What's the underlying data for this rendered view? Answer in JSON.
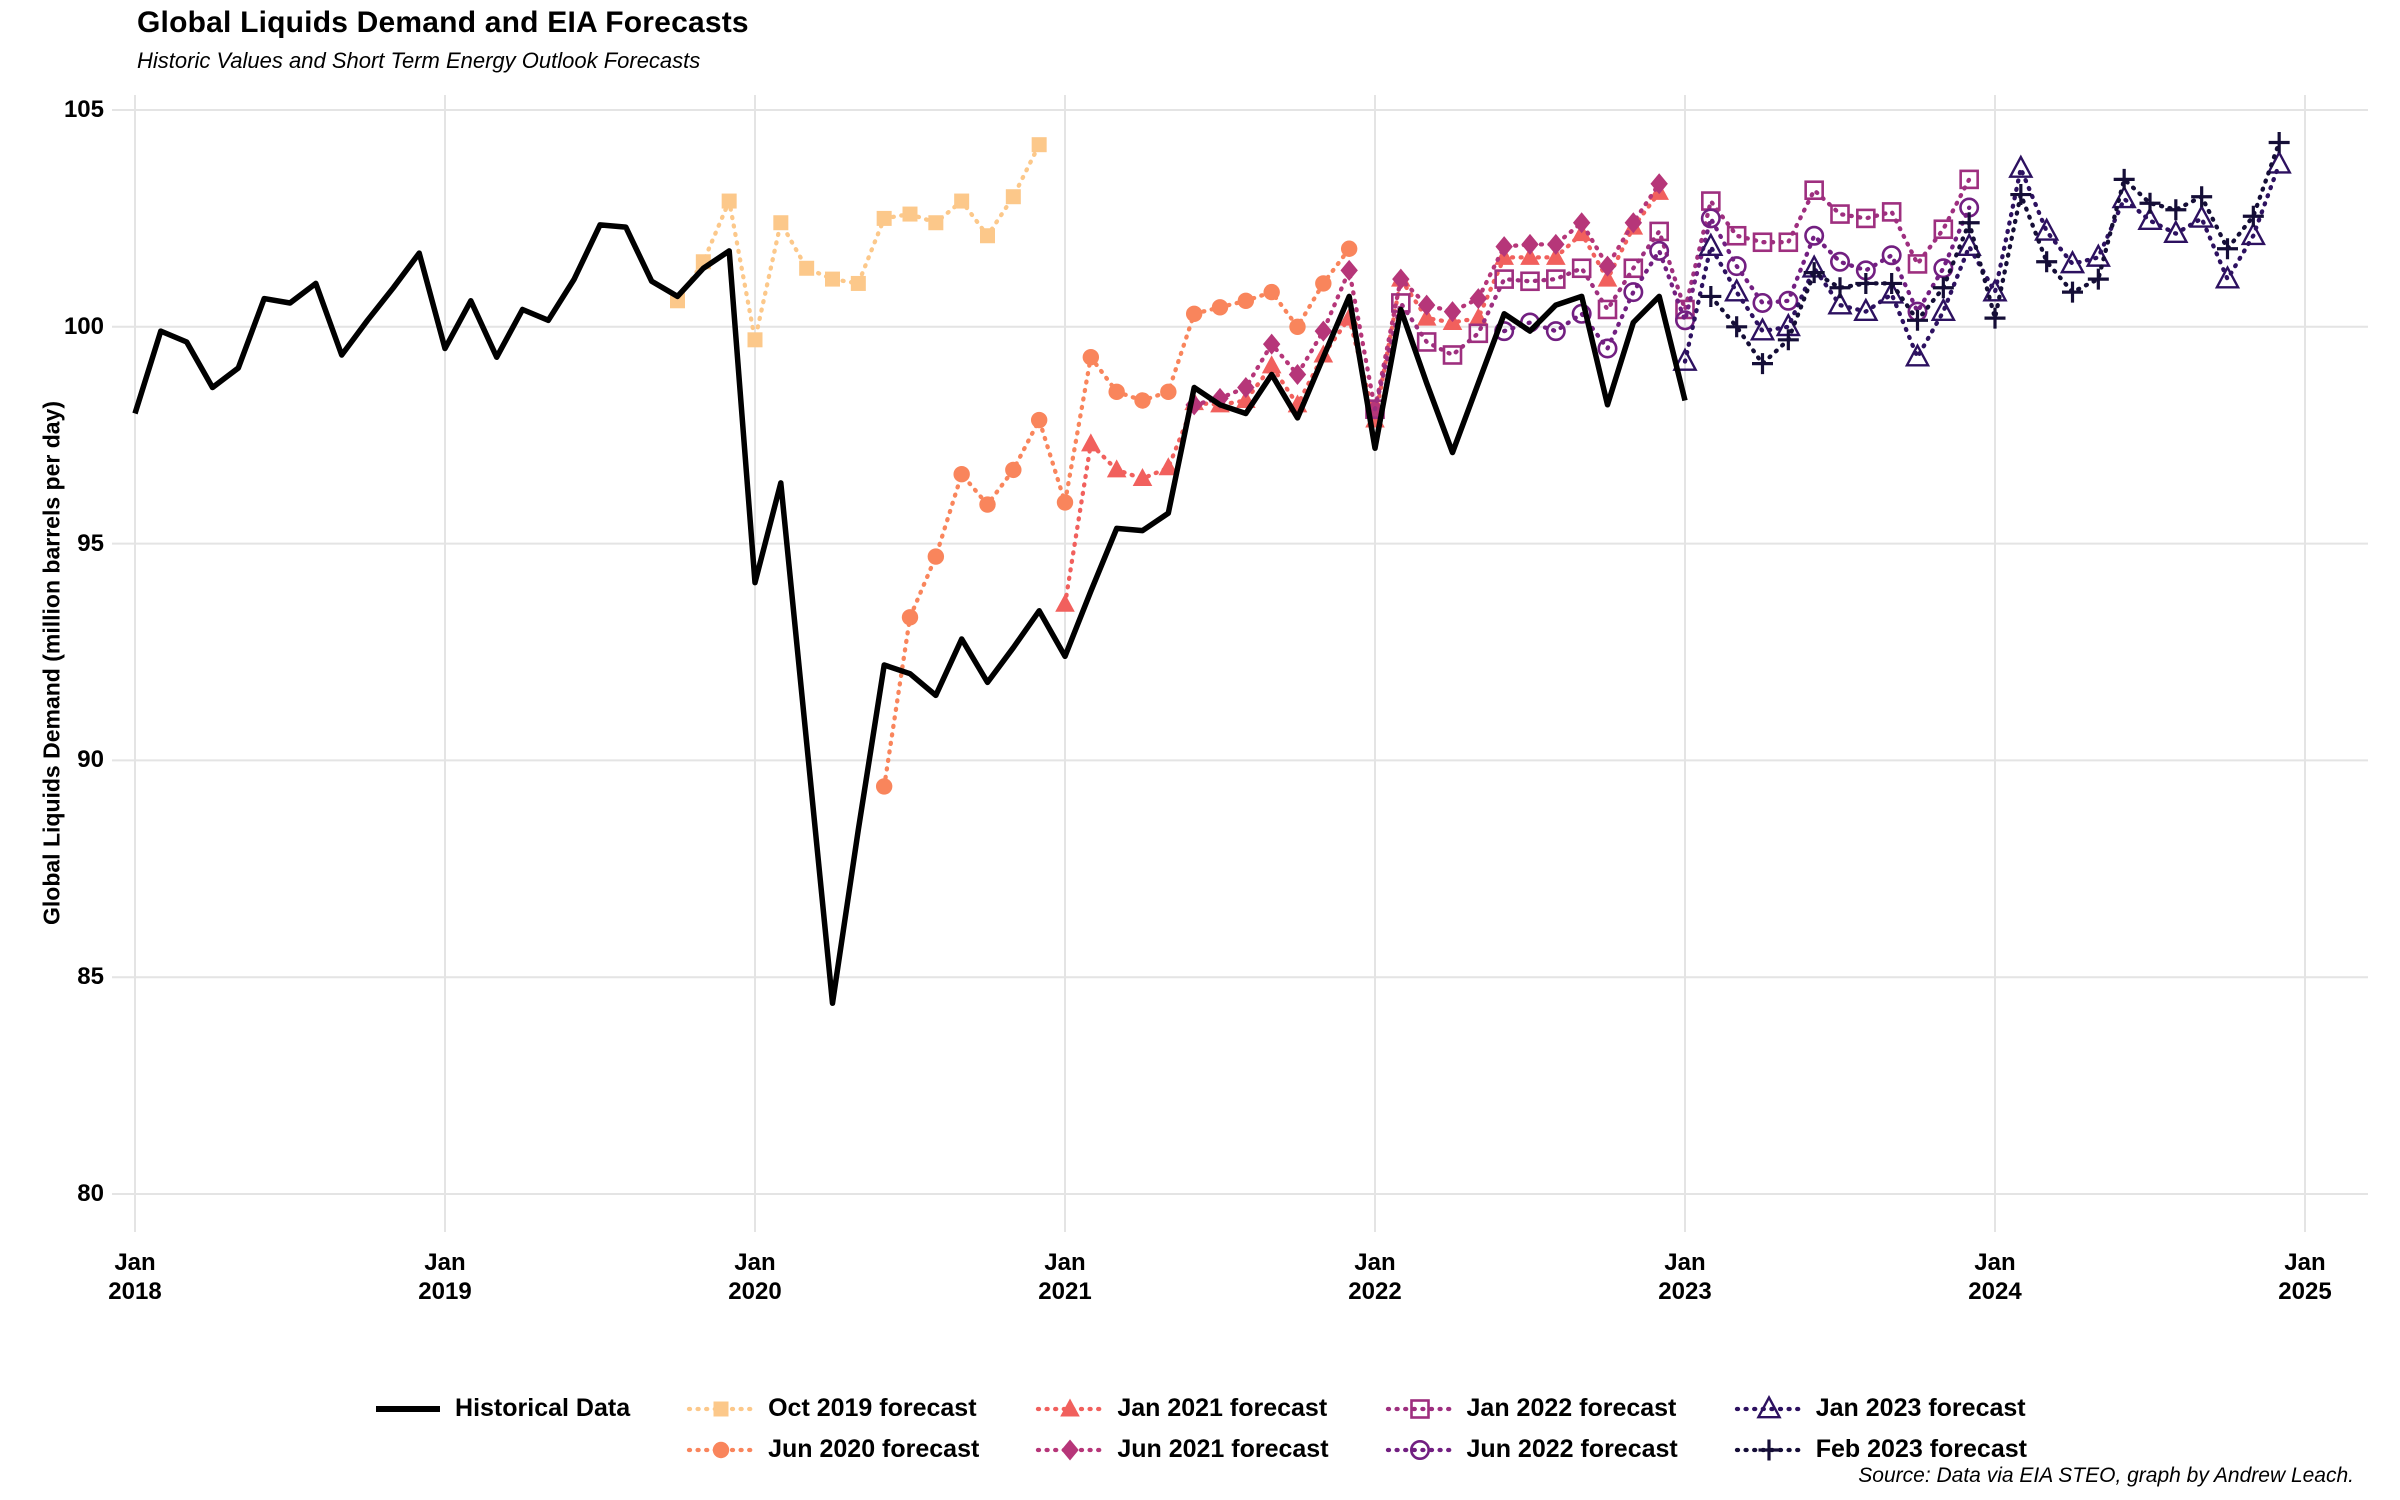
{
  "title": "Global Liquids Demand and EIA Forecasts",
  "subtitle": "Historic Values and Short Term Energy Outlook Forecasts",
  "source": "Source: Data via EIA STEO, graph by Andrew Leach.",
  "chart_data": {
    "type": "line",
    "title": "Global Liquids Demand and EIA Forecasts",
    "subtitle": "Historic Values and Short Term Energy Outlook Forecasts",
    "xlabel": "",
    "ylabel": "Global Liquids Demand (million barrels per day)",
    "ylim": [
      79,
      105.6
    ],
    "yticks": [
      80,
      85,
      90,
      95,
      100,
      105
    ],
    "grid": "major-only, light gray on white",
    "legend_position": "bottom",
    "x_axis": {
      "month_label": "Jan",
      "years": [
        "2018",
        "2019",
        "2020",
        "2021",
        "2022",
        "2023",
        "2024",
        "2025"
      ]
    },
    "x_origin": "2018-01",
    "months_per_year": 12,
    "series": [
      {
        "name": "Historical Data",
        "color": "#000000",
        "line_style": "solid",
        "marker": "none",
        "start_label": "Jan 2018",
        "start_month_index": 0,
        "values": [
          98.0,
          99.9,
          99.65,
          98.6,
          99.05,
          100.65,
          100.55,
          101.0,
          99.35,
          100.15,
          100.9,
          101.7,
          99.5,
          100.6,
          99.3,
          100.4,
          100.15,
          101.1,
          102.35,
          102.3,
          101.05,
          100.7,
          101.35,
          101.75,
          94.1,
          96.4,
          90.4,
          84.4,
          88.4,
          92.2,
          92.0,
          91.5,
          92.8,
          91.8,
          92.6,
          93.45,
          92.4,
          93.9,
          95.35,
          95.3,
          95.7,
          98.6,
          98.2,
          98.0,
          98.9,
          97.9,
          99.3,
          100.7,
          97.2,
          100.4,
          98.7,
          97.1,
          98.7,
          100.3,
          99.9,
          100.5,
          100.7,
          98.2,
          100.1,
          100.7,
          98.3
        ]
      },
      {
        "name": "Oct 2019 forecast",
        "color": "#FCC88A",
        "line_style": "dotted",
        "marker": "square",
        "start_label": "Oct 2019",
        "start_month_index": 21,
        "values": [
          100.6,
          101.5,
          102.9,
          99.7,
          102.4,
          101.35,
          101.1,
          101.0,
          102.5,
          102.6,
          102.4,
          102.9,
          102.1,
          103.0,
          104.2
        ]
      },
      {
        "name": "Jun 2020 forecast",
        "color": "#F9855C",
        "line_style": "dotted",
        "marker": "circle",
        "start_label": "Jun 2020",
        "start_month_index": 29,
        "values": [
          89.4,
          93.3,
          94.7,
          96.6,
          95.9,
          96.7,
          97.85,
          95.95,
          99.3,
          98.5,
          98.3,
          98.5,
          100.3,
          100.45,
          100.6,
          100.8,
          100.0,
          101.0,
          101.8
        ]
      },
      {
        "name": "Jan 2021 forecast",
        "color": "#F1605D",
        "line_style": "dotted",
        "marker": "triangle",
        "start_label": "Jan 2021",
        "start_month_index": 36,
        "values": [
          93.6,
          97.3,
          96.7,
          96.5,
          96.75,
          98.25,
          98.2,
          98.3,
          99.1,
          98.2,
          99.35,
          100.2,
          97.85,
          101.1,
          100.2,
          100.1,
          100.2,
          101.6,
          101.6,
          101.6,
          102.15,
          101.1,
          102.3,
          103.1
        ]
      },
      {
        "name": "Jun 2021 forecast",
        "color": "#B63679",
        "line_style": "dotted",
        "marker": "diamond",
        "start_label": "Jun 2021",
        "start_month_index": 41,
        "values": [
          98.2,
          98.35,
          98.6,
          99.6,
          98.9,
          99.9,
          101.3,
          98.1,
          101.1,
          100.5,
          100.35,
          100.65,
          101.85,
          101.9,
          101.9,
          102.4,
          101.4,
          102.4,
          103.3
        ]
      },
      {
        "name": "Jan 2022 forecast",
        "color": "#9E2F7F",
        "line_style": "dotted",
        "marker": "open-square",
        "start_label": "Jan 2022",
        "start_month_index": 48,
        "values": [
          98.1,
          100.55,
          99.65,
          99.35,
          99.85,
          101.1,
          101.05,
          101.1,
          101.35,
          100.4,
          101.35,
          102.2,
          100.4,
          102.9,
          102.1,
          101.95,
          101.95,
          103.15,
          102.6,
          102.5,
          102.65,
          101.45,
          102.25,
          103.4
        ]
      },
      {
        "name": "Jun 2022 forecast",
        "color": "#721F81",
        "line_style": "dotted",
        "marker": "open-circle",
        "start_label": "Jun 2022",
        "start_month_index": 53,
        "values": [
          99.9,
          100.1,
          99.9,
          100.3,
          99.5,
          100.8,
          101.75,
          100.15,
          102.5,
          101.4,
          100.55,
          100.6,
          102.1,
          101.5,
          101.3,
          101.65,
          100.35,
          101.35,
          102.75
        ]
      },
      {
        "name": "Jan 2023 forecast",
        "color": "#2D1160",
        "line_style": "dotted",
        "marker": "open-triangle",
        "start_label": "Jan 2023",
        "start_month_index": 60,
        "values": [
          99.2,
          101.85,
          100.8,
          99.9,
          100.0,
          101.35,
          100.5,
          100.35,
          100.75,
          99.3,
          100.35,
          101.85,
          100.8,
          103.65,
          102.2,
          101.45,
          101.6,
          102.95,
          102.45,
          102.15,
          102.5,
          101.1,
          102.1,
          103.75
        ]
      },
      {
        "name": "Feb 2023 forecast",
        "color": "#150E37",
        "line_style": "dotted",
        "marker": "plus",
        "start_label": "Feb 2023",
        "start_month_index": 61,
        "values": [
          100.7,
          100.0,
          99.15,
          99.7,
          101.25,
          100.9,
          101.0,
          101.0,
          100.15,
          100.9,
          102.4,
          100.2,
          103.05,
          101.5,
          100.8,
          101.1,
          103.4,
          102.85,
          102.7,
          103.0,
          101.8,
          102.55,
          104.25
        ]
      }
    ],
    "legend_layout_columns": [
      [
        0
      ],
      [
        1,
        2
      ],
      [
        3,
        4
      ],
      [
        5,
        6
      ],
      [
        7,
        8
      ]
    ],
    "panel": {
      "grid_color": "#E4E4E4",
      "background": "#FFFFFF"
    }
  }
}
